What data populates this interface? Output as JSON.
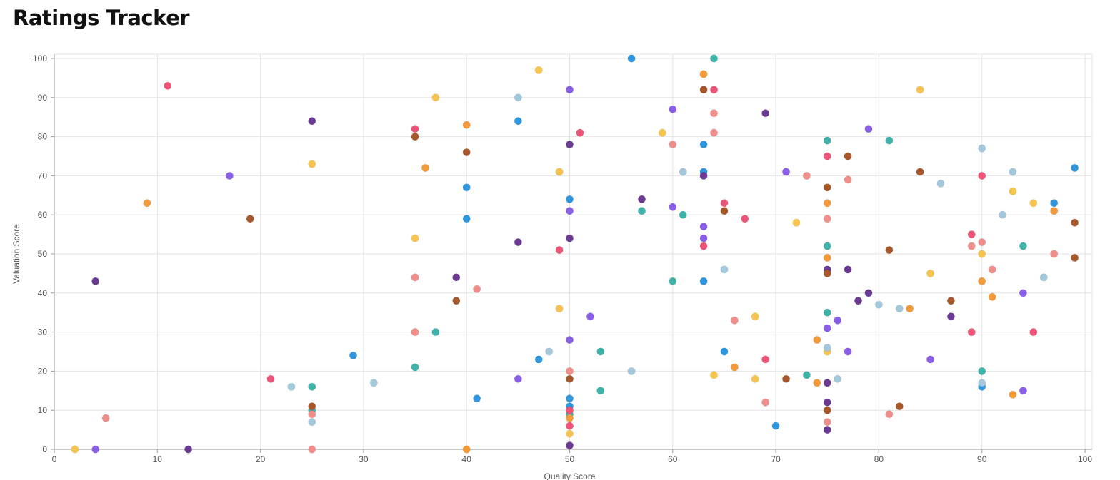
{
  "header": {
    "title": "Ratings Tracker"
  },
  "chart_data": {
    "type": "scatter",
    "title": "",
    "xlabel": "Quality Score",
    "ylabel": "Valuation Score",
    "xlim": [
      0,
      100
    ],
    "ylim": [
      0,
      100
    ],
    "x_ticks": [
      "0",
      "10",
      "20",
      "30",
      "40",
      "50",
      "60",
      "70",
      "80",
      "90",
      "100"
    ],
    "y_ticks": [
      "0",
      "10",
      "20",
      "30",
      "40",
      "50",
      "60",
      "70",
      "80",
      "90",
      "100"
    ],
    "grid": true,
    "legend": "none",
    "colors": {
      "blue": "#2f96dd",
      "teal": "#3fb3aa",
      "red": "#ee5478",
      "salmon": "#f08e8b",
      "orange": "#f39a3a",
      "yellow": "#f7c54f",
      "purple": "#8b5ee8",
      "darkpurple": "#6a3a93",
      "brown": "#a8572a",
      "lightblue": "#a3c8dc"
    },
    "points": [
      {
        "x": 56,
        "y": 100,
        "c": "blue"
      },
      {
        "x": 45,
        "y": 84,
        "c": "blue"
      },
      {
        "x": 63,
        "y": 78,
        "c": "blue"
      },
      {
        "x": 63,
        "y": 71,
        "c": "blue"
      },
      {
        "x": 40,
        "y": 67,
        "c": "blue"
      },
      {
        "x": 50,
        "y": 64,
        "c": "blue"
      },
      {
        "x": 40,
        "y": 59,
        "c": "blue"
      },
      {
        "x": 63,
        "y": 43,
        "c": "blue"
      },
      {
        "x": 29,
        "y": 24,
        "c": "blue"
      },
      {
        "x": 47,
        "y": 23,
        "c": "blue"
      },
      {
        "x": 65,
        "y": 25,
        "c": "blue"
      },
      {
        "x": 41,
        "y": 13,
        "c": "blue"
      },
      {
        "x": 50,
        "y": 13,
        "c": "blue"
      },
      {
        "x": 50,
        "y": 11,
        "c": "blue"
      },
      {
        "x": 70,
        "y": 6,
        "c": "blue"
      },
      {
        "x": 99,
        "y": 72,
        "c": "blue"
      },
      {
        "x": 97,
        "y": 63,
        "c": "blue"
      },
      {
        "x": 90,
        "y": 16,
        "c": "blue"
      },
      {
        "x": 64,
        "y": 100,
        "c": "teal"
      },
      {
        "x": 75,
        "y": 79,
        "c": "teal"
      },
      {
        "x": 81,
        "y": 79,
        "c": "teal"
      },
      {
        "x": 57,
        "y": 61,
        "c": "teal"
      },
      {
        "x": 61,
        "y": 60,
        "c": "teal"
      },
      {
        "x": 75,
        "y": 52,
        "c": "teal"
      },
      {
        "x": 94,
        "y": 52,
        "c": "teal"
      },
      {
        "x": 60,
        "y": 43,
        "c": "teal"
      },
      {
        "x": 75,
        "y": 35,
        "c": "teal"
      },
      {
        "x": 37,
        "y": 30,
        "c": "teal"
      },
      {
        "x": 35,
        "y": 21,
        "c": "teal"
      },
      {
        "x": 53,
        "y": 25,
        "c": "teal"
      },
      {
        "x": 25,
        "y": 16,
        "c": "teal"
      },
      {
        "x": 73,
        "y": 19,
        "c": "teal"
      },
      {
        "x": 90,
        "y": 20,
        "c": "teal"
      },
      {
        "x": 53,
        "y": 15,
        "c": "teal"
      },
      {
        "x": 25,
        "y": 10,
        "c": "teal"
      },
      {
        "x": 50,
        "y": 9,
        "c": "teal"
      },
      {
        "x": 11,
        "y": 93,
        "c": "red"
      },
      {
        "x": 64,
        "y": 92,
        "c": "red"
      },
      {
        "x": 35,
        "y": 82,
        "c": "red"
      },
      {
        "x": 51,
        "y": 81,
        "c": "red"
      },
      {
        "x": 75,
        "y": 75,
        "c": "red"
      },
      {
        "x": 90,
        "y": 70,
        "c": "red"
      },
      {
        "x": 65,
        "y": 63,
        "c": "red"
      },
      {
        "x": 67,
        "y": 59,
        "c": "red"
      },
      {
        "x": 89,
        "y": 55,
        "c": "red"
      },
      {
        "x": 63,
        "y": 52,
        "c": "red"
      },
      {
        "x": 49,
        "y": 51,
        "c": "red"
      },
      {
        "x": 89,
        "y": 30,
        "c": "red"
      },
      {
        "x": 95,
        "y": 30,
        "c": "red"
      },
      {
        "x": 69,
        "y": 23,
        "c": "red"
      },
      {
        "x": 21,
        "y": 18,
        "c": "red"
      },
      {
        "x": 50,
        "y": 10,
        "c": "red"
      },
      {
        "x": 50,
        "y": 6,
        "c": "red"
      },
      {
        "x": 64,
        "y": 86,
        "c": "salmon"
      },
      {
        "x": 64,
        "y": 81,
        "c": "salmon"
      },
      {
        "x": 60,
        "y": 78,
        "c": "salmon"
      },
      {
        "x": 73,
        "y": 70,
        "c": "salmon"
      },
      {
        "x": 77,
        "y": 69,
        "c": "salmon"
      },
      {
        "x": 75,
        "y": 59,
        "c": "salmon"
      },
      {
        "x": 90,
        "y": 53,
        "c": "salmon"
      },
      {
        "x": 89,
        "y": 52,
        "c": "salmon"
      },
      {
        "x": 97,
        "y": 50,
        "c": "salmon"
      },
      {
        "x": 91,
        "y": 46,
        "c": "salmon"
      },
      {
        "x": 35,
        "y": 44,
        "c": "salmon"
      },
      {
        "x": 41,
        "y": 41,
        "c": "salmon"
      },
      {
        "x": 66,
        "y": 33,
        "c": "salmon"
      },
      {
        "x": 35,
        "y": 30,
        "c": "salmon"
      },
      {
        "x": 50,
        "y": 20,
        "c": "salmon"
      },
      {
        "x": 69,
        "y": 12,
        "c": "salmon"
      },
      {
        "x": 81,
        "y": 9,
        "c": "salmon"
      },
      {
        "x": 25,
        "y": 9,
        "c": "salmon"
      },
      {
        "x": 5,
        "y": 8,
        "c": "salmon"
      },
      {
        "x": 75,
        "y": 7,
        "c": "salmon"
      },
      {
        "x": 25,
        "y": 0,
        "c": "salmon"
      },
      {
        "x": 63,
        "y": 96,
        "c": "orange"
      },
      {
        "x": 40,
        "y": 83,
        "c": "orange"
      },
      {
        "x": 36,
        "y": 72,
        "c": "orange"
      },
      {
        "x": 9,
        "y": 63,
        "c": "orange"
      },
      {
        "x": 75,
        "y": 63,
        "c": "orange"
      },
      {
        "x": 97,
        "y": 61,
        "c": "orange"
      },
      {
        "x": 75,
        "y": 49,
        "c": "orange"
      },
      {
        "x": 90,
        "y": 43,
        "c": "orange"
      },
      {
        "x": 91,
        "y": 39,
        "c": "orange"
      },
      {
        "x": 83,
        "y": 36,
        "c": "orange"
      },
      {
        "x": 74,
        "y": 28,
        "c": "orange"
      },
      {
        "x": 66,
        "y": 21,
        "c": "orange"
      },
      {
        "x": 74,
        "y": 17,
        "c": "orange"
      },
      {
        "x": 93,
        "y": 14,
        "c": "orange"
      },
      {
        "x": 50,
        "y": 8,
        "c": "orange"
      },
      {
        "x": 40,
        "y": 0,
        "c": "orange"
      },
      {
        "x": 47,
        "y": 97,
        "c": "yellow"
      },
      {
        "x": 37,
        "y": 90,
        "c": "yellow"
      },
      {
        "x": 84,
        "y": 92,
        "c": "yellow"
      },
      {
        "x": 59,
        "y": 81,
        "c": "yellow"
      },
      {
        "x": 25,
        "y": 73,
        "c": "yellow"
      },
      {
        "x": 49,
        "y": 71,
        "c": "yellow"
      },
      {
        "x": 93,
        "y": 66,
        "c": "yellow"
      },
      {
        "x": 95,
        "y": 63,
        "c": "yellow"
      },
      {
        "x": 72,
        "y": 58,
        "c": "yellow"
      },
      {
        "x": 35,
        "y": 54,
        "c": "yellow"
      },
      {
        "x": 90,
        "y": 50,
        "c": "yellow"
      },
      {
        "x": 85,
        "y": 45,
        "c": "yellow"
      },
      {
        "x": 49,
        "y": 36,
        "c": "yellow"
      },
      {
        "x": 68,
        "y": 34,
        "c": "yellow"
      },
      {
        "x": 75,
        "y": 25,
        "c": "yellow"
      },
      {
        "x": 64,
        "y": 19,
        "c": "yellow"
      },
      {
        "x": 68,
        "y": 18,
        "c": "yellow"
      },
      {
        "x": 50,
        "y": 4,
        "c": "yellow"
      },
      {
        "x": 2,
        "y": 0,
        "c": "yellow"
      },
      {
        "x": 50,
        "y": 92,
        "c": "purple"
      },
      {
        "x": 60,
        "y": 87,
        "c": "purple"
      },
      {
        "x": 79,
        "y": 82,
        "c": "purple"
      },
      {
        "x": 17,
        "y": 70,
        "c": "purple"
      },
      {
        "x": 71,
        "y": 71,
        "c": "purple"
      },
      {
        "x": 60,
        "y": 62,
        "c": "purple"
      },
      {
        "x": 50,
        "y": 61,
        "c": "purple"
      },
      {
        "x": 63,
        "y": 57,
        "c": "purple"
      },
      {
        "x": 63,
        "y": 54,
        "c": "purple"
      },
      {
        "x": 94,
        "y": 40,
        "c": "purple"
      },
      {
        "x": 52,
        "y": 34,
        "c": "purple"
      },
      {
        "x": 76,
        "y": 33,
        "c": "purple"
      },
      {
        "x": 75,
        "y": 31,
        "c": "purple"
      },
      {
        "x": 50,
        "y": 28,
        "c": "purple"
      },
      {
        "x": 77,
        "y": 25,
        "c": "purple"
      },
      {
        "x": 85,
        "y": 23,
        "c": "purple"
      },
      {
        "x": 45,
        "y": 18,
        "c": "purple"
      },
      {
        "x": 94,
        "y": 15,
        "c": "purple"
      },
      {
        "x": 4,
        "y": 0,
        "c": "purple"
      },
      {
        "x": 25,
        "y": 84,
        "c": "darkpurple"
      },
      {
        "x": 69,
        "y": 86,
        "c": "darkpurple"
      },
      {
        "x": 50,
        "y": 78,
        "c": "darkpurple"
      },
      {
        "x": 63,
        "y": 70,
        "c": "darkpurple"
      },
      {
        "x": 57,
        "y": 64,
        "c": "darkpurple"
      },
      {
        "x": 50,
        "y": 54,
        "c": "darkpurple"
      },
      {
        "x": 45,
        "y": 53,
        "c": "darkpurple"
      },
      {
        "x": 75,
        "y": 46,
        "c": "darkpurple"
      },
      {
        "x": 77,
        "y": 46,
        "c": "darkpurple"
      },
      {
        "x": 39,
        "y": 44,
        "c": "darkpurple"
      },
      {
        "x": 4,
        "y": 43,
        "c": "darkpurple"
      },
      {
        "x": 79,
        "y": 40,
        "c": "darkpurple"
      },
      {
        "x": 78,
        "y": 38,
        "c": "darkpurple"
      },
      {
        "x": 87,
        "y": 34,
        "c": "darkpurple"
      },
      {
        "x": 75,
        "y": 17,
        "c": "darkpurple"
      },
      {
        "x": 75,
        "y": 12,
        "c": "darkpurple"
      },
      {
        "x": 75,
        "y": 5,
        "c": "darkpurple"
      },
      {
        "x": 50,
        "y": 1,
        "c": "darkpurple"
      },
      {
        "x": 13,
        "y": 0,
        "c": "darkpurple"
      },
      {
        "x": 63,
        "y": 92,
        "c": "brown"
      },
      {
        "x": 35,
        "y": 80,
        "c": "brown"
      },
      {
        "x": 40,
        "y": 76,
        "c": "brown"
      },
      {
        "x": 77,
        "y": 75,
        "c": "brown"
      },
      {
        "x": 84,
        "y": 71,
        "c": "brown"
      },
      {
        "x": 75,
        "y": 67,
        "c": "brown"
      },
      {
        "x": 65,
        "y": 61,
        "c": "brown"
      },
      {
        "x": 19,
        "y": 59,
        "c": "brown"
      },
      {
        "x": 99,
        "y": 58,
        "c": "brown"
      },
      {
        "x": 81,
        "y": 51,
        "c": "brown"
      },
      {
        "x": 99,
        "y": 49,
        "c": "brown"
      },
      {
        "x": 75,
        "y": 45,
        "c": "brown"
      },
      {
        "x": 39,
        "y": 38,
        "c": "brown"
      },
      {
        "x": 87,
        "y": 38,
        "c": "brown"
      },
      {
        "x": 50,
        "y": 18,
        "c": "brown"
      },
      {
        "x": 71,
        "y": 18,
        "c": "brown"
      },
      {
        "x": 25,
        "y": 11,
        "c": "brown"
      },
      {
        "x": 82,
        "y": 11,
        "c": "brown"
      },
      {
        "x": 75,
        "y": 10,
        "c": "brown"
      },
      {
        "x": 45,
        "y": 90,
        "c": "lightblue"
      },
      {
        "x": 90,
        "y": 77,
        "c": "lightblue"
      },
      {
        "x": 61,
        "y": 71,
        "c": "lightblue"
      },
      {
        "x": 93,
        "y": 71,
        "c": "lightblue"
      },
      {
        "x": 86,
        "y": 68,
        "c": "lightblue"
      },
      {
        "x": 92,
        "y": 60,
        "c": "lightblue"
      },
      {
        "x": 65,
        "y": 46,
        "c": "lightblue"
      },
      {
        "x": 96,
        "y": 44,
        "c": "lightblue"
      },
      {
        "x": 80,
        "y": 37,
        "c": "lightblue"
      },
      {
        "x": 82,
        "y": 36,
        "c": "lightblue"
      },
      {
        "x": 75,
        "y": 26,
        "c": "lightblue"
      },
      {
        "x": 48,
        "y": 25,
        "c": "lightblue"
      },
      {
        "x": 56,
        "y": 20,
        "c": "lightblue"
      },
      {
        "x": 76,
        "y": 18,
        "c": "lightblue"
      },
      {
        "x": 31,
        "y": 17,
        "c": "lightblue"
      },
      {
        "x": 90,
        "y": 17,
        "c": "lightblue"
      },
      {
        "x": 23,
        "y": 16,
        "c": "lightblue"
      },
      {
        "x": 25,
        "y": 7,
        "c": "lightblue"
      }
    ]
  }
}
